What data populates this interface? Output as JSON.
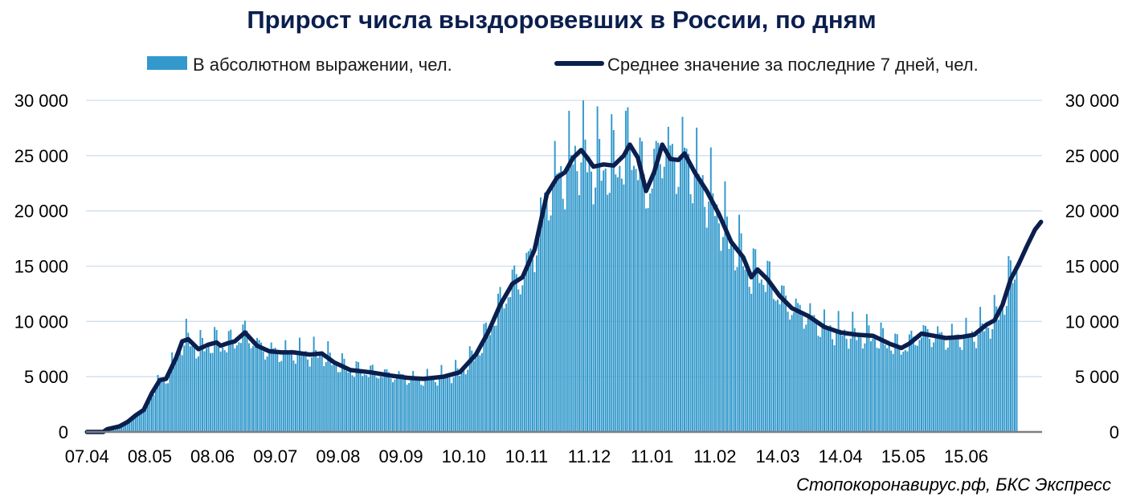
{
  "chart_data": {
    "type": "bar+line",
    "title": "Прирост числа выздоровевших в России, по дням",
    "source": "Стопокоронавирус.рф, БКС Экспресс",
    "legend": {
      "placement": "top",
      "bar_label": "В абсолютном выражении, чел.",
      "line_label": "Среднее значение за последние 7 дней, чел."
    },
    "y_axis": {
      "ylim": [
        0,
        30000
      ],
      "ticks": [
        0,
        5000,
        10000,
        15000,
        20000,
        25000,
        30000
      ],
      "tick_labels": [
        "0",
        "5 000",
        "10 000",
        "15 000",
        "20 000",
        "25 000",
        "30 000"
      ],
      "grid": true,
      "mirrored_right": true
    },
    "x_axis": {
      "tick_labels": [
        "07.04",
        "08.05",
        "08.06",
        "09.07",
        "09.08",
        "09.09",
        "10.10",
        "10.11",
        "11.12",
        "11.01",
        "11.02",
        "14.03",
        "14.04",
        "15.05",
        "15.06"
      ],
      "tick_label_positions": [
        0,
        31,
        62,
        93,
        124,
        155,
        186,
        217,
        248,
        279,
        310,
        341,
        372,
        403,
        434
      ]
    },
    "daily_count": 460,
    "series_keypoints": {
      "name": "Среднее значение за последние 7 дней, чел.",
      "unit": "чел.",
      "points": [
        [
          0,
          0
        ],
        [
          8,
          0
        ],
        [
          10,
          250
        ],
        [
          16,
          500
        ],
        [
          20,
          900
        ],
        [
          24,
          1500
        ],
        [
          28,
          2000
        ],
        [
          32,
          3500
        ],
        [
          36,
          4700
        ],
        [
          39,
          4800
        ],
        [
          44,
          6700
        ],
        [
          47,
          8200
        ],
        [
          50,
          8400
        ],
        [
          55,
          7500
        ],
        [
          60,
          7900
        ],
        [
          64,
          8100
        ],
        [
          66,
          7800
        ],
        [
          69,
          8000
        ],
        [
          73,
          8200
        ],
        [
          78,
          9000
        ],
        [
          84,
          7800
        ],
        [
          90,
          7300
        ],
        [
          96,
          7200
        ],
        [
          102,
          7200
        ],
        [
          110,
          7000
        ],
        [
          116,
          7100
        ],
        [
          122,
          6300
        ],
        [
          130,
          5600
        ],
        [
          140,
          5400
        ],
        [
          150,
          5100
        ],
        [
          158,
          4900
        ],
        [
          166,
          4800
        ],
        [
          176,
          5000
        ],
        [
          184,
          5400
        ],
        [
          192,
          7000
        ],
        [
          198,
          9000
        ],
        [
          204,
          11500
        ],
        [
          210,
          13400
        ],
        [
          215,
          14000
        ],
        [
          221,
          16500
        ],
        [
          227,
          21500
        ],
        [
          232,
          23000
        ],
        [
          236,
          23500
        ],
        [
          240,
          24800
        ],
        [
          244,
          25500
        ],
        [
          247,
          24800
        ],
        [
          250,
          24000
        ],
        [
          255,
          24200
        ],
        [
          260,
          24100
        ],
        [
          265,
          25000
        ],
        [
          268,
          26000
        ],
        [
          272,
          24800
        ],
        [
          276,
          21800
        ],
        [
          280,
          23500
        ],
        [
          284,
          26000
        ],
        [
          288,
          24700
        ],
        [
          292,
          24600
        ],
        [
          295,
          25200
        ],
        [
          300,
          23500
        ],
        [
          306,
          21800
        ],
        [
          312,
          19700
        ],
        [
          318,
          17200
        ],
        [
          324,
          15800
        ],
        [
          328,
          14000
        ],
        [
          331,
          14700
        ],
        [
          336,
          13800
        ],
        [
          342,
          12300
        ],
        [
          348,
          11200
        ],
        [
          356,
          10500
        ],
        [
          364,
          9500
        ],
        [
          372,
          9000
        ],
        [
          380,
          8800
        ],
        [
          388,
          8700
        ],
        [
          396,
          8000
        ],
        [
          402,
          7600
        ],
        [
          406,
          8000
        ],
        [
          412,
          8900
        ],
        [
          418,
          8700
        ],
        [
          424,
          8500
        ],
        [
          432,
          8600
        ],
        [
          438,
          8800
        ],
        [
          444,
          9700
        ],
        [
          448,
          10100
        ],
        [
          452,
          11500
        ],
        [
          456,
          13800
        ],
        [
          460,
          15200
        ],
        [
          464,
          16800
        ],
        [
          468,
          18300
        ],
        [
          471,
          19000
        ]
      ]
    },
    "axis_font_color": "#000000",
    "bar_color": "#3399cc",
    "line_color": "#0b1f4e",
    "grid_color": "#cfdfee",
    "title_color": "#0b1f4e"
  }
}
